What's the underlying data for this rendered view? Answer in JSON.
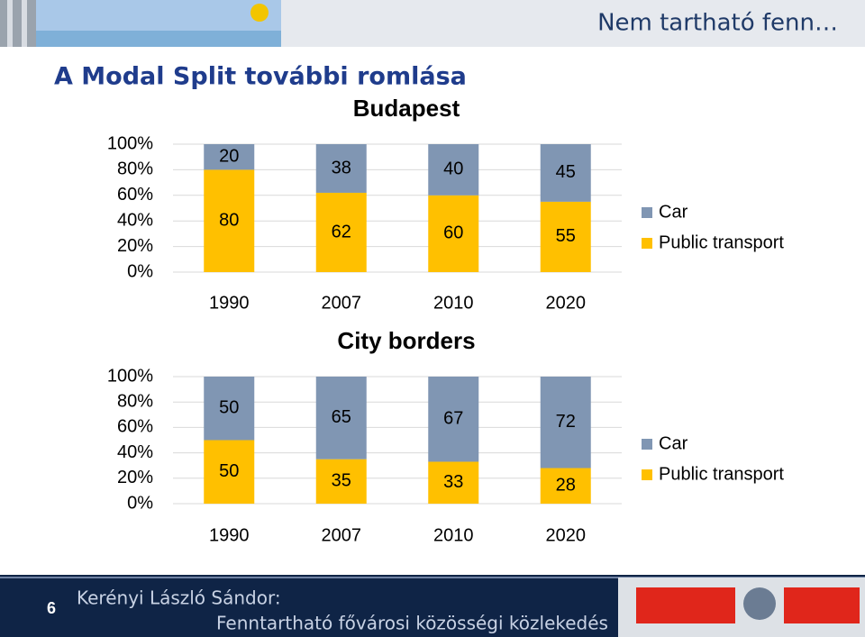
{
  "header": {
    "tagline": "Nem tartható fenn…",
    "title": "A Modal Split további romlása"
  },
  "footer": {
    "page": "6",
    "author": "Kerényi László Sándor:",
    "subtitle": "Fenntartható fővárosi közösségi közlekedés"
  },
  "chart_data": [
    {
      "type": "stacked_bar",
      "title": "Budapest",
      "categories": [
        "1990",
        "2007",
        "2010",
        "2020"
      ],
      "series": [
        {
          "name": "Car",
          "color": "#8096b3",
          "values": [
            20,
            38,
            40,
            45
          ]
        },
        {
          "name": "Public transport",
          "color": "#ffc000",
          "values": [
            80,
            62,
            60,
            55
          ]
        }
      ],
      "ylim": [
        0,
        100
      ],
      "yticks": [
        {
          "value": 0,
          "label": "0%"
        },
        {
          "value": 20,
          "label": "20%"
        },
        {
          "value": 40,
          "label": "40%"
        },
        {
          "value": 60,
          "label": "60%"
        },
        {
          "value": 80,
          "label": "80%"
        },
        {
          "value": 100,
          "label": "100%"
        }
      ],
      "grid": true,
      "legend": "right"
    },
    {
      "type": "stacked_bar",
      "title": "City borders",
      "categories": [
        "1990",
        "2007",
        "2010",
        "2020"
      ],
      "series": [
        {
          "name": "Car",
          "color": "#8096b3",
          "values": [
            50,
            65,
            67,
            72
          ]
        },
        {
          "name": "Public transport",
          "color": "#ffc000",
          "values": [
            50,
            35,
            33,
            28
          ]
        }
      ],
      "ylim": [
        0,
        100
      ],
      "yticks": [
        {
          "value": 0,
          "label": "0%"
        },
        {
          "value": 20,
          "label": "20%"
        },
        {
          "value": 40,
          "label": "40%"
        },
        {
          "value": 60,
          "label": "60%"
        },
        {
          "value": 80,
          "label": "80%"
        },
        {
          "value": 100,
          "label": "100%"
        }
      ],
      "grid": true,
      "legend": "right"
    }
  ]
}
